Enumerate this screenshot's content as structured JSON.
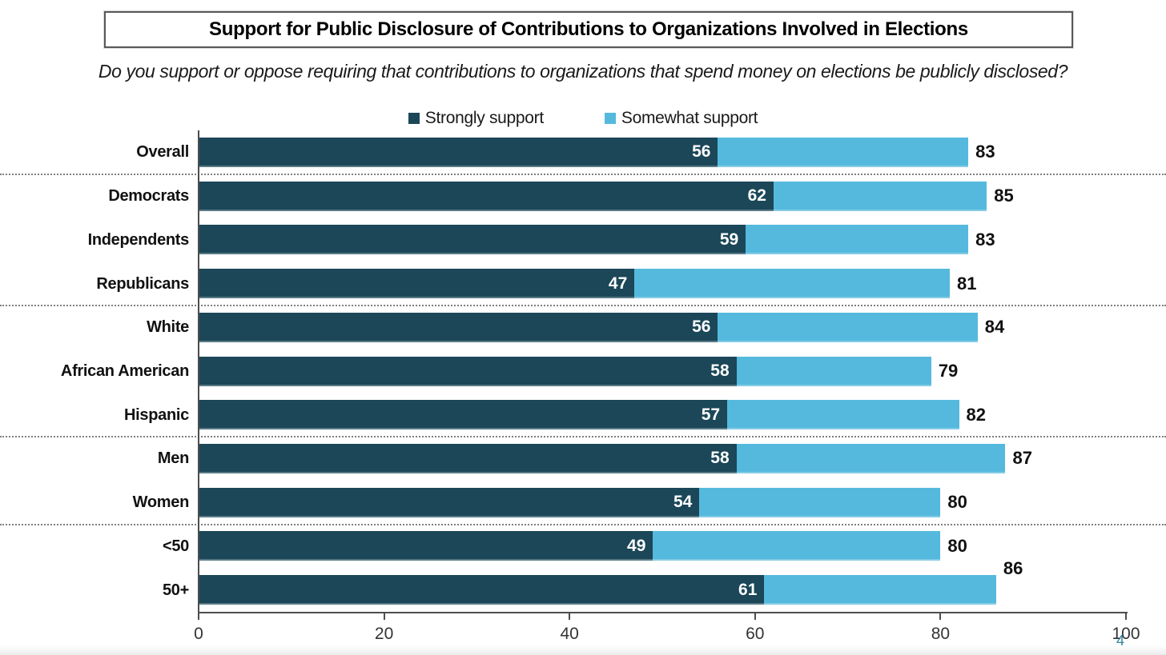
{
  "header": {
    "title": "Support for Public Disclosure of Contributions to Organizations Involved in Elections",
    "subtitle": "Do you support or oppose requiring that contributions to organizations that spend money on elections be publicly disclosed?"
  },
  "chart_data": {
    "type": "bar",
    "orientation": "horizontal-stacked",
    "categories": [
      "Overall",
      "Democrats",
      "Independents",
      "Republicans",
      "White",
      "African American",
      "Hispanic",
      "Men",
      "Women",
      "<50",
      "50+"
    ],
    "series": [
      {
        "name": "Strongly support",
        "color": "#1b4758",
        "values": [
          56,
          62,
          59,
          47,
          56,
          58,
          57,
          58,
          54,
          49,
          61
        ]
      },
      {
        "name": "Somewhat support",
        "color": "#55b9dd",
        "values": [
          27,
          23,
          24,
          34,
          28,
          21,
          25,
          29,
          26,
          31,
          25
        ]
      }
    ],
    "totals": [
      83,
      85,
      83,
      81,
      84,
      79,
      82,
      87,
      80,
      80,
      86
    ],
    "xlim": [
      0,
      100
    ],
    "x_ticks": [
      0,
      20,
      40,
      60,
      80,
      100
    ],
    "separators_after": [
      "Overall",
      "Republicans",
      "Hispanic",
      "Women"
    ],
    "raised_total_labels": [
      "50+"
    ],
    "legend_position": "top-center",
    "grid": false,
    "value_label_color": "#ffffff",
    "total_label_color": "#111111"
  },
  "footer": {
    "page_number": "4"
  }
}
